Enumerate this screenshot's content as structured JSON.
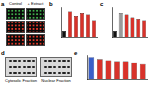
{
  "images": {
    "letter": "a",
    "columns": [
      "Control",
      "+ Extract"
    ],
    "row_colors": [
      "#3fae4a",
      "#e0382a",
      "#e0382a"
    ]
  },
  "blots": {
    "letter": "d",
    "panels": [
      {
        "label": "Cytosolic Fraction",
        "lanes": 6,
        "bands": 3
      },
      {
        "label": "Nuclear Fraction",
        "lanes": 6,
        "bands": 3
      }
    ]
  },
  "chart_data": [
    {
      "panel": "b",
      "type": "bar",
      "categories": [
        null,
        null,
        null,
        null,
        null,
        null
      ],
      "values": [
        20,
        85,
        70,
        80,
        75,
        55
      ],
      "colors": [
        "#111111",
        "#d8322a",
        "#d8322a",
        "#d8322a",
        "#d8322a",
        "#d8322a"
      ],
      "ylim": [
        0,
        100
      ],
      "grid": false,
      "tick_labels": false
    },
    {
      "panel": "c",
      "type": "bar",
      "categories": [
        null,
        null,
        null,
        null,
        null,
        null
      ],
      "values": [
        20,
        80,
        75,
        65,
        60,
        55
      ],
      "colors": [
        "#111111",
        "#9a9a9a",
        "#d8322a",
        "#d8322a",
        "#d8322a",
        "#d8322a"
      ],
      "ylim": [
        0,
        100
      ],
      "grid": false,
      "tick_labels": false
    },
    {
      "panel": "e",
      "type": "bar",
      "categories": [
        null,
        null,
        null,
        null,
        null,
        null,
        null
      ],
      "values": [
        100,
        90,
        85,
        80,
        80,
        75,
        70
      ],
      "colors": [
        "#3a5fc8",
        "#d8322a",
        "#d8322a",
        "#d8322a",
        "#d8322a",
        "#d8322a",
        "#d8322a"
      ],
      "ylim": [
        0,
        110
      ],
      "grid": false,
      "tick_labels": false
    }
  ]
}
